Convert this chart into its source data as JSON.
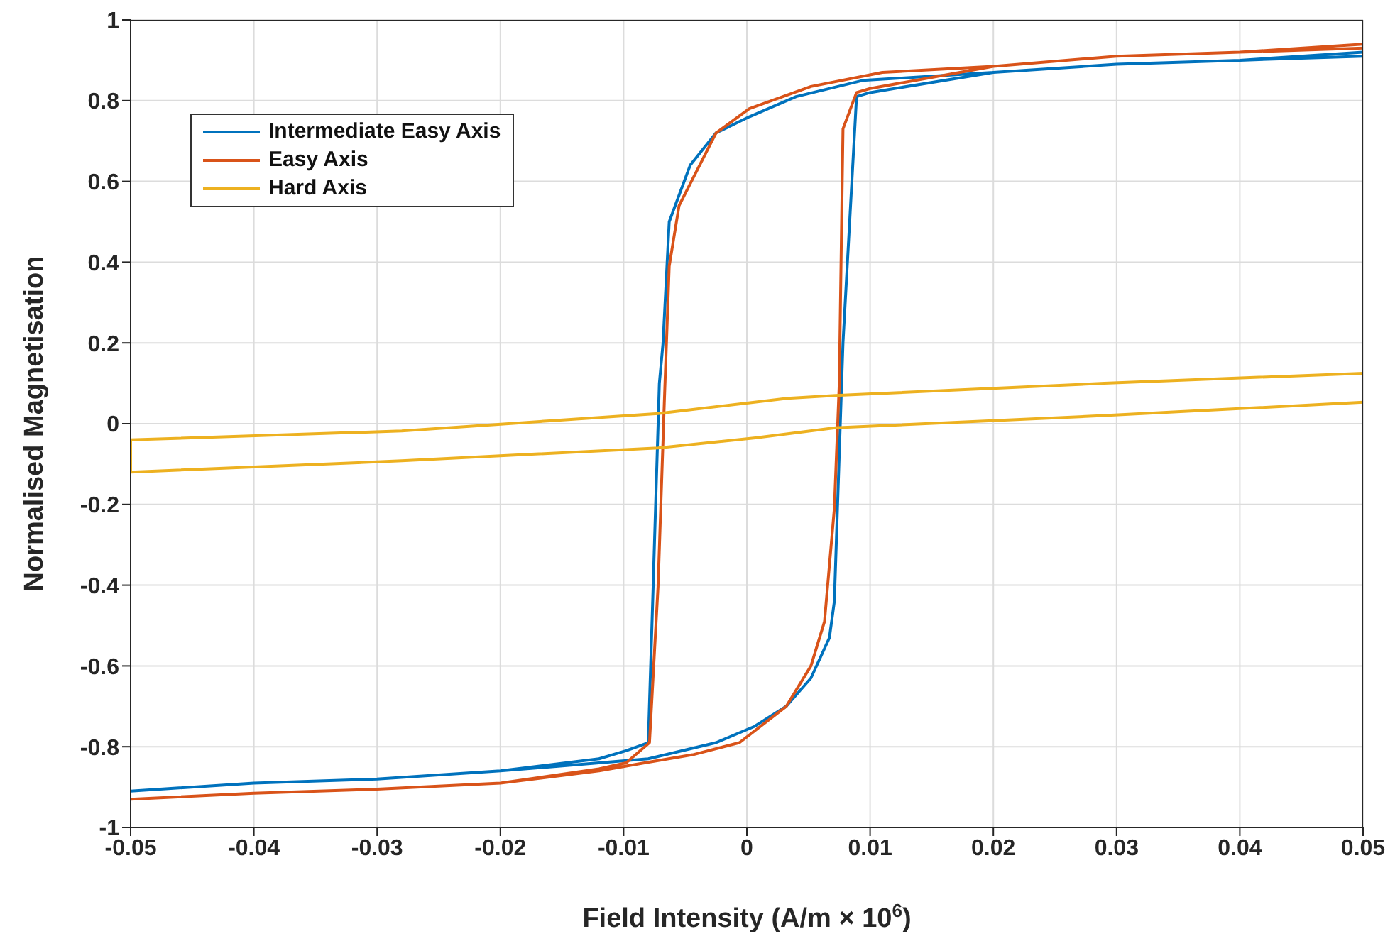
{
  "chart_data": {
    "type": "line",
    "xlabel": "Field Intensity (A/m × 10$^{6}$)",
    "ylabel": "Normalised Magnetisation",
    "xlim": [
      -0.05,
      0.05
    ],
    "ylim": [
      -1,
      1
    ],
    "xticks": [
      -0.05,
      -0.04,
      -0.03,
      -0.02,
      -0.01,
      0,
      0.01,
      0.02,
      0.03,
      0.04,
      0.05
    ],
    "yticks": [
      -1,
      -0.8,
      -0.6,
      -0.4,
      -0.2,
      0,
      0.2,
      0.4,
      0.6,
      0.8,
      1
    ],
    "grid": true,
    "legend": "top left",
    "marker": "none",
    "line_style": "solid",
    "series": [
      {
        "name": "Intermediate Easy Axis",
        "color": "#0072bd",
        "x": [
          0.05,
          0.04,
          0.03,
          0.02,
          0.0094,
          0.004,
          0.0002,
          -0.0025,
          -0.0046,
          -0.0063,
          -0.0068,
          -0.0071,
          -0.0076,
          -0.008,
          -0.0098,
          -0.012,
          -0.02,
          -0.03,
          -0.04,
          -0.05,
          -0.04,
          -0.03,
          -0.02,
          -0.012,
          -0.008,
          -0.0025,
          0.0006,
          0.0032,
          0.0052,
          0.0067,
          0.0071,
          0.0078,
          0.0089,
          0.01,
          0.02,
          0.03,
          0.04,
          0.05
        ],
        "values": [
          0.92,
          0.9,
          0.89,
          0.87,
          0.85,
          0.81,
          0.76,
          0.72,
          0.64,
          0.5,
          0.2,
          0.1,
          -0.4,
          -0.79,
          -0.81,
          -0.83,
          -0.86,
          -0.88,
          -0.89,
          -0.91,
          -0.89,
          -0.88,
          -0.86,
          -0.84,
          -0.83,
          -0.79,
          -0.75,
          -0.7,
          -0.63,
          -0.53,
          -0.44,
          0.2,
          0.81,
          0.82,
          0.87,
          0.89,
          0.9,
          0.91
        ]
      },
      {
        "name": "Easy Axis",
        "color": "#d95319",
        "x": [
          0.05,
          0.04,
          0.03,
          0.02,
          0.011,
          0.0052,
          0.0002,
          -0.0025,
          -0.0055,
          -0.0063,
          -0.0067,
          -0.0072,
          -0.0079,
          -0.0098,
          -0.012,
          -0.02,
          -0.03,
          -0.04,
          -0.05,
          -0.04,
          -0.03,
          -0.02,
          -0.012,
          -0.0083,
          -0.0044,
          -0.0006,
          0.0032,
          0.0052,
          0.0063,
          0.0071,
          0.0075,
          0.0078,
          0.0089,
          0.01,
          0.02,
          0.03,
          0.04,
          0.05
        ],
        "values": [
          0.94,
          0.92,
          0.91,
          0.885,
          0.87,
          0.835,
          0.78,
          0.72,
          0.54,
          0.39,
          0.05,
          -0.4,
          -0.79,
          -0.84,
          -0.855,
          -0.89,
          -0.905,
          -0.915,
          -0.93,
          -0.915,
          -0.905,
          -0.89,
          -0.86,
          -0.84,
          -0.82,
          -0.79,
          -0.7,
          -0.6,
          -0.49,
          -0.21,
          0.1,
          0.73,
          0.82,
          0.83,
          0.885,
          0.91,
          0.92,
          0.93
        ]
      },
      {
        "name": "Hard Axis",
        "color": "#edb120",
        "x": [
          0.05,
          0.029,
          0.0072,
          0.0033,
          -0.0072,
          -0.016,
          -0.028,
          -0.05,
          -0.05,
          -0.028,
          -0.0072,
          0.0007,
          0.0072,
          0.029,
          0.05
        ],
        "values": [
          0.125,
          0.1,
          0.07,
          0.063,
          0.025,
          0.007,
          -0.018,
          -0.04,
          -0.12,
          -0.092,
          -0.06,
          -0.035,
          -0.01,
          0.02,
          0.053
        ]
      }
    ]
  }
}
